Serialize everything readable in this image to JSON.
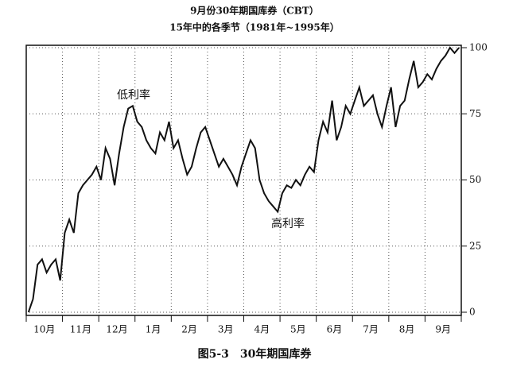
{
  "chart_data": {
    "type": "line",
    "title": "9月份30年期国库券（CBT）",
    "subtitle": "15年中的各季节（1981年~1995年）",
    "caption": "图5-3　30年期国库券",
    "annotations": [
      "低利率",
      "高利率"
    ],
    "categories": [
      null,
      null,
      null,
      null,
      "10月",
      null,
      null,
      null,
      null,
      null,
      null,
      null,
      "11月",
      null,
      null,
      null,
      null,
      null,
      null,
      null,
      "12月",
      null,
      null,
      null,
      null,
      null,
      null,
      null,
      "1月",
      null,
      null,
      null,
      null,
      null,
      null,
      null,
      "2月",
      null,
      null,
      null,
      null,
      null,
      null,
      null,
      "3月",
      null,
      null,
      null,
      null,
      null,
      null,
      null,
      "4月",
      null,
      null,
      null,
      null,
      null,
      null,
      null,
      "5月",
      null,
      null,
      null,
      null,
      null,
      null,
      null,
      "6月",
      null,
      null,
      null,
      null,
      null,
      null,
      null,
      "7月",
      null,
      null,
      null,
      null,
      null,
      null,
      null,
      "8月",
      null,
      null,
      null,
      null,
      null,
      null,
      null,
      "9月",
      null,
      null,
      null
    ],
    "values": [
      0,
      5,
      18,
      20,
      15,
      18,
      20,
      12,
      30,
      35,
      30,
      45,
      48,
      50,
      52,
      55,
      50,
      62,
      58,
      48,
      60,
      70,
      77,
      78,
      72,
      70,
      65,
      62,
      60,
      68,
      65,
      72,
      62,
      65,
      58,
      52,
      55,
      62,
      68,
      70,
      65,
      60,
      55,
      58,
      55,
      52,
      48,
      55,
      60,
      65,
      62,
      50,
      45,
      42,
      40,
      38,
      45,
      48,
      47,
      50,
      48,
      52,
      55,
      53,
      65,
      72,
      68,
      80,
      65,
      70,
      78,
      75,
      80,
      85,
      78,
      80,
      82,
      75,
      70,
      78,
      85,
      70,
      78,
      80,
      88,
      95,
      85,
      87,
      90,
      88,
      92,
      95,
      97,
      100,
      98,
      100
    ],
    "color": "#111111",
    "ylim": [
      0,
      100
    ],
    "yticks": [
      0,
      25,
      50,
      75,
      100
    ],
    "grid": true
  }
}
